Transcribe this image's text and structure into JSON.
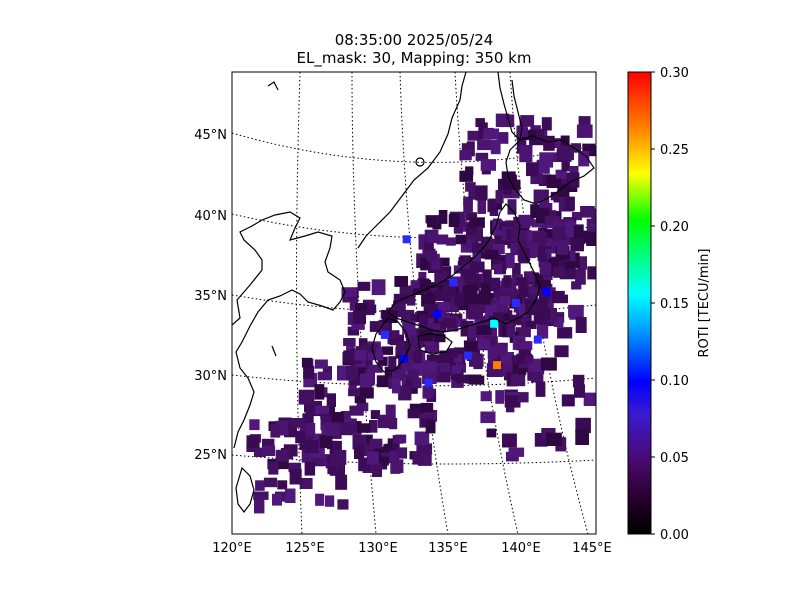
{
  "title": {
    "line1": "08:35:00 2025/05/24",
    "line2": "EL_mask: 30, Mapping: 350 km"
  },
  "map": {
    "lon_ticks": [
      "120°E",
      "125°E",
      "130°E",
      "135°E",
      "140°E",
      "145°E"
    ],
    "lat_ticks": [
      "45°N",
      "40°N",
      "35°N",
      "30°N",
      "25°N"
    ],
    "graticule": "dotted",
    "region": "Japan and surrounding seas",
    "background": "#ffffff",
    "coastline_color": "#000000"
  },
  "colorbar": {
    "label": "ROTI [TECU/min]",
    "colormap": "jet-like (black → purple → blue → cyan → green → yellow → red)",
    "ticks": [
      "0.00",
      "0.05",
      "0.10",
      "0.15",
      "0.20",
      "0.25",
      "0.30"
    ],
    "range": [
      0.0,
      0.3
    ]
  },
  "chart_data": {
    "type": "heatmap",
    "title": "08:35:00 2025/05/24\nEL_mask: 30, Mapping: 350 km",
    "xlabel": "",
    "ylabel": "",
    "colorbar_label": "ROTI [TECU/min]",
    "xlim": [
      120,
      145
    ],
    "ylim": [
      20,
      49
    ],
    "vrange": [
      0.0,
      0.3
    ],
    "notes": "Dense coverage of ROTI ~0.03 TECU/min over Japan; isolated higher values near 138°E 30.5°N (up to ~0.30) and 141.5°E 35°N (~0.13)",
    "hotspots": [
      {
        "lon": 138.2,
        "lat": 30.6,
        "roti": 0.28
      },
      {
        "lon": 138.0,
        "lat": 33.2,
        "roti": 0.18
      },
      {
        "lon": 141.6,
        "lat": 35.2,
        "roti": 0.13
      },
      {
        "lon": 131.8,
        "lat": 31.0,
        "roti": 0.1
      },
      {
        "lon": 134.1,
        "lat": 33.8,
        "roti": 0.1
      },
      {
        "lon": 140.4,
        "lat": 31.0,
        "roti": 0.09
      }
    ]
  }
}
